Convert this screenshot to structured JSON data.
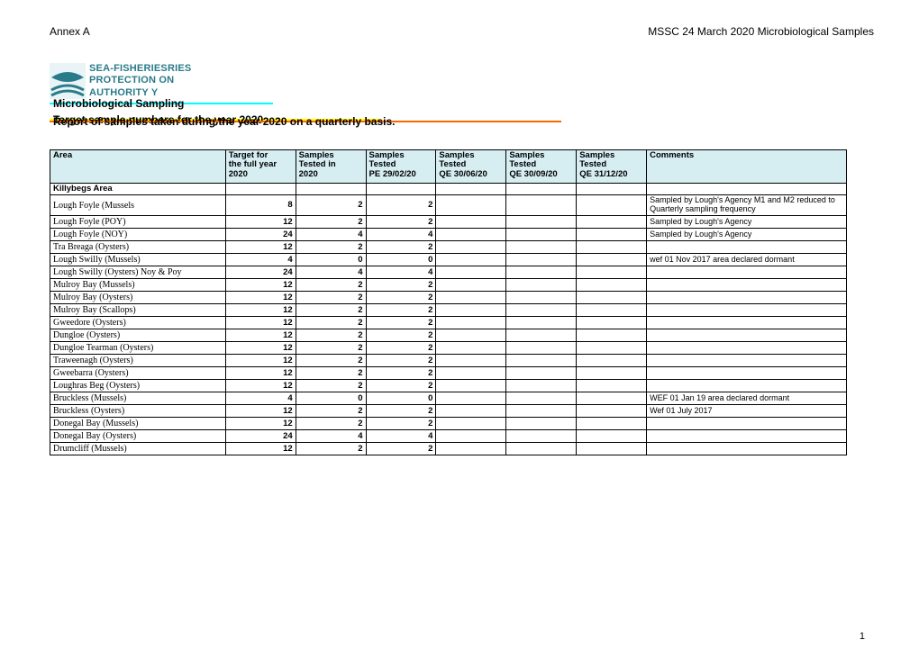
{
  "header": {
    "left": "Annex A",
    "right": "MSSC 24 March 2020 Microbiological Samples"
  },
  "logo": {
    "line1": "SEA-FISHERIESRIES",
    "line2": "PROTECTION ON",
    "line3": "AUTHORITY  Y",
    "color": "#2a7b8a"
  },
  "bands": {
    "b1": "Microbiological Sampling",
    "b2": "Target sample numbers for the year 2020",
    "b3": "Report of samples taken during the year 2020 on a quarterly basis."
  },
  "columns": [
    [
      "",
      "Area",
      ""
    ],
    [
      "Target for",
      "the full year",
      "2020"
    ],
    [
      "Samples",
      "Tested in",
      "2020"
    ],
    [
      "Samples",
      "Tested",
      "PE 29/02/20"
    ],
    [
      "Samples",
      "Tested",
      "QE 30/06/20"
    ],
    [
      "Samples",
      "Tested",
      "QE 30/09/20"
    ],
    [
      "Samples",
      "Tested",
      "QE 31/12/20"
    ],
    [
      "Comments",
      "",
      ""
    ]
  ],
  "section": "Killybegs Area",
  "rows": [
    {
      "area": "Lough Foyle (Mussels",
      "target": "8",
      "tested": "2",
      "pe": "2",
      "q2": "",
      "q3": "",
      "q4": "",
      "c": "Sampled by Lough's Agency M1 and M2 reduced to Quarterly sampling frequency"
    },
    {
      "area": "Lough Foyle (POY)",
      "target": "12",
      "tested": "2",
      "pe": "2",
      "q2": "",
      "q3": "",
      "q4": "",
      "c": "Sampled by Lough's Agency"
    },
    {
      "area": "Lough Foyle (NOY)",
      "target": "24",
      "tested": "4",
      "pe": "4",
      "q2": "",
      "q3": "",
      "q4": "",
      "c": "Sampled by Lough's Agency"
    },
    {
      "area": "Tra Breaga (Oysters)",
      "target": "12",
      "tested": "2",
      "pe": "2",
      "q2": "",
      "q3": "",
      "q4": "",
      "c": ""
    },
    {
      "area": "Lough Swilly (Mussels)",
      "target": "4",
      "tested": "0",
      "pe": "0",
      "q2": "",
      "q3": "",
      "q4": "",
      "c": "wef 01 Nov 2017 area declared dormant"
    },
    {
      "area": "Lough Swilly (Oysters) Noy & Poy",
      "target": "24",
      "tested": "4",
      "pe": "4",
      "q2": "",
      "q3": "",
      "q4": "",
      "c": ""
    },
    {
      "area": "Mulroy Bay (Mussels)",
      "target": "12",
      "tested": "2",
      "pe": "2",
      "q2": "",
      "q3": "",
      "q4": "",
      "c": ""
    },
    {
      "area": "Mulroy Bay (Oysters)",
      "target": "12",
      "tested": "2",
      "pe": "2",
      "q2": "",
      "q3": "",
      "q4": "",
      "c": ""
    },
    {
      "area": "Mulroy Bay (Scallops)",
      "target": "12",
      "tested": "2",
      "pe": "2",
      "q2": "",
      "q3": "",
      "q4": "",
      "c": ""
    },
    {
      "area": "Gweedore (Oysters)",
      "target": "12",
      "tested": "2",
      "pe": "2",
      "q2": "",
      "q3": "",
      "q4": "",
      "c": ""
    },
    {
      "area": "Dungloe (Oysters)",
      "target": "12",
      "tested": "2",
      "pe": "2",
      "q2": "",
      "q3": "",
      "q4": "",
      "c": ""
    },
    {
      "area": "Dungloe Tearman (Oysters)",
      "target": "12",
      "tested": "2",
      "pe": "2",
      "q2": "",
      "q3": "",
      "q4": "",
      "c": ""
    },
    {
      "area": "Traweenagh (Oysters)",
      "target": "12",
      "tested": "2",
      "pe": "2",
      "q2": "",
      "q3": "",
      "q4": "",
      "c": ""
    },
    {
      "area": "Gweebarra (Oysters)",
      "target": "12",
      "tested": "2",
      "pe": "2",
      "q2": "",
      "q3": "",
      "q4": "",
      "c": ""
    },
    {
      "area": "Loughras Beg (Oysters)",
      "target": "12",
      "tested": "2",
      "pe": "2",
      "q2": "",
      "q3": "",
      "q4": "",
      "c": ""
    },
    {
      "area": "Bruckless (Mussels)",
      "target": "4",
      "tested": "0",
      "pe": "0",
      "q2": "",
      "q3": "",
      "q4": "",
      "c": "WEF 01 Jan 19 area declared dormant"
    },
    {
      "area": "Bruckless (Oysters)",
      "target": "12",
      "tested": "2",
      "pe": "2",
      "q2": "",
      "q3": "",
      "q4": "",
      "c": "Wef 01 July 2017"
    },
    {
      "area": "Donegal Bay (Mussels)",
      "target": "12",
      "tested": "2",
      "pe": "2",
      "q2": "",
      "q3": "",
      "q4": "",
      "c": ""
    },
    {
      "area": "Donegal Bay (Oysters)",
      "target": "24",
      "tested": "4",
      "pe": "4",
      "q2": "",
      "q3": "",
      "q4": "",
      "c": ""
    },
    {
      "area": "Drumcliff (Mussels)",
      "target": "12",
      "tested": "2",
      "pe": "2",
      "q2": "",
      "q3": "",
      "q4": "",
      "c": ""
    }
  ],
  "page_num": "1"
}
